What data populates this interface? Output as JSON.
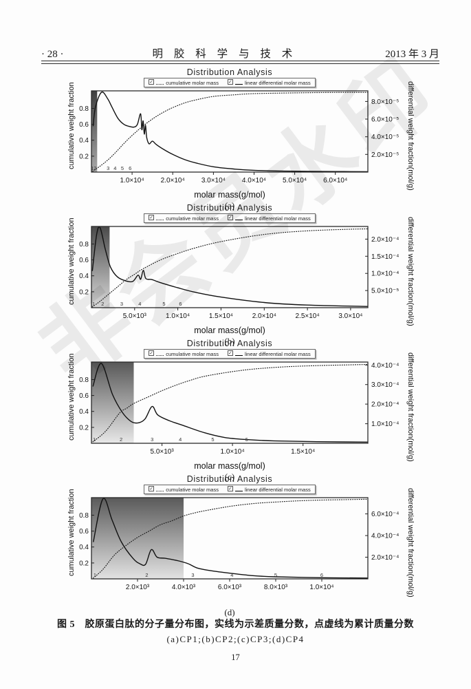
{
  "page": {
    "header": {
      "page_marker": "· 28 ·",
      "journal_title": "明 胶 科 学 与 技 术",
      "issue_date": "2013 年 3 月"
    },
    "watermark": "非会员水印",
    "caption_line1": "图 5　胶原蛋白肽的分子量分布图，实线为示差质量分数，点虚线为累计质量分数",
    "caption_line2": "(a)CP1;(b)CP2;(c)CP3;(d)CP4",
    "page_number": "17"
  },
  "chart_common": {
    "title": "Distribution Analysis",
    "legend": [
      {
        "icon": "checkbox-checked-icon",
        "line": "dotted",
        "label": "cumulative molar mass"
      },
      {
        "icon": "checkbox-checked-icon",
        "line": "solid",
        "label": "linear differential molar mass"
      }
    ],
    "ylabel_left": "cumulative weight fraction",
    "ylabel_right": "differential weight fraction(mol/g)",
    "left_axis": {
      "max": 1.02,
      "ticks": [
        {
          "value": 0.2,
          "label": "0.2"
        },
        {
          "value": 0.4,
          "label": "0.4"
        },
        {
          "value": 0.6,
          "label": "0.6"
        },
        {
          "value": 0.8,
          "label": "0.8"
        }
      ]
    },
    "colors": {
      "line": "#1a1a1a",
      "frame": "#2a2a2a",
      "text": "#111111"
    }
  },
  "chart_data": [
    {
      "panel": "(a)",
      "type": "line",
      "xlabel": "molar mass(g/mol)",
      "x_max": 68000,
      "x_ticks": [
        {
          "value": 10000,
          "label": "1.0×10⁴"
        },
        {
          "value": 20000,
          "label": "2.0×10⁴"
        },
        {
          "value": 30000,
          "label": "3.0×10⁴"
        },
        {
          "value": 40000,
          "label": "4.0×10⁴"
        },
        {
          "value": 50000,
          "label": "5.0×10⁴"
        },
        {
          "value": 60000,
          "label": "6.0×10⁴"
        }
      ],
      "right_axis": {
        "max": 9.2e-05,
        "ticks": [
          {
            "value": 2e-05,
            "label": "2.0×10⁻⁵"
          },
          {
            "value": 4e-05,
            "label": "4.0×10⁻⁵"
          },
          {
            "value": 6e-05,
            "label": "6.0×10⁻⁵"
          },
          {
            "value": 8e-05,
            "label": "8.0×10⁻⁵"
          }
        ]
      },
      "shade": {
        "x_end": 1400,
        "top_color": "#3f3f3f",
        "bottom_color": "#a8a8a8"
      },
      "slice_markers": [
        {
          "n": 1,
          "x": 200
        },
        {
          "n": 2,
          "x": 900
        },
        {
          "n": 3,
          "x": 4100
        },
        {
          "n": 4,
          "x": 5800
        },
        {
          "n": 5,
          "x": 7600
        },
        {
          "n": 6,
          "x": 9500
        }
      ],
      "series": [
        {
          "name": "cumulative molar mass",
          "style": "dotted",
          "axis": "left",
          "points": [
            [
              300,
              0.01
            ],
            [
              2000,
              0.07
            ],
            [
              4000,
              0.15
            ],
            [
              6000,
              0.25
            ],
            [
              8000,
              0.36
            ],
            [
              10000,
              0.46
            ],
            [
              12000,
              0.55
            ],
            [
              14000,
              0.63
            ],
            [
              16000,
              0.7
            ],
            [
              18000,
              0.76
            ],
            [
              20000,
              0.81
            ],
            [
              23000,
              0.87
            ],
            [
              26000,
              0.91
            ],
            [
              30000,
              0.95
            ],
            [
              35000,
              0.97
            ],
            [
              40000,
              0.985
            ],
            [
              50000,
              0.995
            ],
            [
              60000,
              1.0
            ],
            [
              68000,
              1.0
            ]
          ]
        },
        {
          "name": "linear differential molar mass",
          "style": "solid",
          "axis": "right",
          "points": [
            [
              400,
              5.2e-05
            ],
            [
              1000,
              7.4e-05
            ],
            [
              2500,
              9.05e-05
            ],
            [
              4000,
              8.3e-05
            ],
            [
              5000,
              7.4e-05
            ],
            [
              6500,
              6.1e-05
            ],
            [
              8000,
              5.4e-05
            ],
            [
              9500,
              5.15e-05
            ],
            [
              10500,
              5.1e-05
            ],
            [
              11300,
              5.4e-05
            ],
            [
              12100,
              6.6e-05
            ],
            [
              12400,
              4.8e-05
            ],
            [
              12700,
              5.8e-05
            ],
            [
              13000,
              4.3e-05
            ],
            [
              13300,
              5.3e-05
            ],
            [
              13600,
              3.9e-05
            ],
            [
              14200,
              3.2e-05
            ],
            [
              15000,
              3.5e-05
            ],
            [
              16000,
              3.1e-05
            ],
            [
              18000,
              2.5e-05
            ],
            [
              20000,
              2e-05
            ],
            [
              23000,
              1.4e-05
            ],
            [
              26000,
              1e-05
            ],
            [
              30000,
              6e-06
            ],
            [
              35000,
              3.5e-06
            ],
            [
              40000,
              2e-06
            ],
            [
              50000,
              1e-06
            ],
            [
              60000,
              6e-07
            ],
            [
              68000,
              5e-07
            ]
          ]
        }
      ]
    },
    {
      "panel": "(b)",
      "type": "line",
      "xlabel": "molar mass(g/mol)",
      "x_max": 32000,
      "x_ticks": [
        {
          "value": 5000,
          "label": "5.0×10³"
        },
        {
          "value": 10000,
          "label": "1.0×10⁴"
        },
        {
          "value": 15000,
          "label": "1.5×10⁴"
        },
        {
          "value": 20000,
          "label": "2.0×10⁴"
        },
        {
          "value": 25000,
          "label": "2.5×10⁴"
        },
        {
          "value": 30000,
          "label": "3.0×10⁴"
        }
      ],
      "right_axis": {
        "max": 0.000237,
        "ticks": [
          {
            "value": 5e-05,
            "label": "5.0×10⁻⁵"
          },
          {
            "value": 0.0001,
            "label": "1.0×10⁻⁴"
          },
          {
            "value": 0.00015,
            "label": "1.5×10⁻⁴"
          },
          {
            "value": 0.0002,
            "label": "2.0×10⁻⁴"
          }
        ]
      },
      "shade": {
        "x_end": 2100,
        "top_color": "#4a4a4a",
        "bottom_color": "#d8d8d8"
      },
      "slice_markers": [
        {
          "n": 1,
          "x": 250
        },
        {
          "n": 2,
          "x": 1300
        },
        {
          "n": 3,
          "x": 3500
        },
        {
          "n": 4,
          "x": 5600
        },
        {
          "n": 5,
          "x": 8400
        },
        {
          "n": 6,
          "x": 10300
        }
      ],
      "series": [
        {
          "name": "cumulative molar mass",
          "style": "dotted",
          "axis": "left",
          "points": [
            [
              100,
              0.01
            ],
            [
              1000,
              0.08
            ],
            [
              2000,
              0.17
            ],
            [
              3000,
              0.26
            ],
            [
              4000,
              0.35
            ],
            [
              5000,
              0.42
            ],
            [
              6000,
              0.49
            ],
            [
              8000,
              0.6
            ],
            [
              10000,
              0.68
            ],
            [
              12000,
              0.75
            ],
            [
              15000,
              0.83
            ],
            [
              20000,
              0.92
            ],
            [
              25000,
              0.965
            ],
            [
              30000,
              0.985
            ],
            [
              32000,
              0.99
            ]
          ]
        },
        {
          "name": "linear differential molar mass",
          "style": "solid",
          "axis": "right",
          "points": [
            [
              100,
              0.000107
            ],
            [
              600,
              0.000213
            ],
            [
              1000,
              0.000233
            ],
            [
              1600,
              0.000171
            ],
            [
              2200,
              0.000119
            ],
            [
              3000,
              9e-05
            ],
            [
              4000,
              7.8e-05
            ],
            [
              4800,
              7.7e-05
            ],
            [
              5400,
              9.5e-05
            ],
            [
              5700,
              8.3e-05
            ],
            [
              6000,
              0.000109
            ],
            [
              6300,
              8.5e-05
            ],
            [
              7000,
              8.2e-05
            ],
            [
              8000,
              7.3e-05
            ],
            [
              10000,
              5.8e-05
            ],
            [
              12000,
              4.5e-05
            ],
            [
              15000,
              3.1e-05
            ],
            [
              20000,
              1.5e-05
            ],
            [
              25000,
              7.6e-06
            ],
            [
              32000,
              3.6e-06
            ]
          ]
        }
      ]
    },
    {
      "panel": "(c)",
      "type": "line",
      "xlabel": "molar mass(g/mol)",
      "x_max": 19600,
      "x_ticks": [
        {
          "value": 5000,
          "label": "5.0×10³"
        },
        {
          "value": 10000,
          "label": "1.0×10⁴"
        },
        {
          "value": 15000,
          "label": "1.5×10⁴"
        }
      ],
      "right_axis": {
        "max": 0.000415,
        "ticks": [
          {
            "value": 0.0001,
            "label": "1.0×10⁻⁴"
          },
          {
            "value": 0.0002,
            "label": "2.0×10⁻⁴"
          },
          {
            "value": 0.0003,
            "label": "3.0×10⁻⁴"
          },
          {
            "value": 0.0004,
            "label": "4.0×10⁻⁴"
          }
        ]
      },
      "shade": {
        "x_end": 3000,
        "top_color": "#585858",
        "bottom_color": "#e8e8e8"
      },
      "slice_markers": [
        {
          "n": 1,
          "x": 200
        },
        {
          "n": 2,
          "x": 2100
        },
        {
          "n": 3,
          "x": 4300
        },
        {
          "n": 4,
          "x": 6300
        },
        {
          "n": 5,
          "x": 8600
        },
        {
          "n": 6,
          "x": 11000
        }
      ],
      "series": [
        {
          "name": "cumulative molar mass",
          "style": "dotted",
          "axis": "left",
          "points": [
            [
              100,
              0.02
            ],
            [
              1000,
              0.15
            ],
            [
              2000,
              0.38
            ],
            [
              2500,
              0.44
            ],
            [
              3000,
              0.5
            ],
            [
              4000,
              0.58
            ],
            [
              5000,
              0.66
            ],
            [
              6000,
              0.73
            ],
            [
              7000,
              0.79
            ],
            [
              8000,
              0.84
            ],
            [
              10000,
              0.9
            ],
            [
              12000,
              0.94
            ],
            [
              15000,
              0.97
            ],
            [
              19600,
              0.99
            ]
          ]
        },
        {
          "name": "linear differential molar mass",
          "style": "solid",
          "axis": "right",
          "points": [
            [
              100,
              0.00029
            ],
            [
              700,
              0.000408
            ],
            [
              1500,
              0.000248
            ],
            [
              2200,
              0.000157
            ],
            [
              2800,
              0.000112
            ],
            [
              3300,
              0.000104
            ],
            [
              3800,
              0.000124
            ],
            [
              4300,
              0.000188
            ],
            [
              4700,
              0.000145
            ],
            [
              5500,
              0.000116
            ],
            [
              6500,
              9.1e-05
            ],
            [
              8000,
              5.4e-05
            ],
            [
              9500,
              2.9e-05
            ],
            [
              11000,
              1.9e-05
            ],
            [
              13000,
              1.2e-05
            ],
            [
              16000,
              8e-06
            ],
            [
              19600,
              6e-06
            ]
          ]
        }
      ]
    },
    {
      "panel": "(d)",
      "type": "line",
      "xlabel": "",
      "x_max": 12000,
      "x_ticks": [
        {
          "value": 2000,
          "label": "2.0×10³"
        },
        {
          "value": 4000,
          "label": "4.0×10³"
        },
        {
          "value": 6000,
          "label": "6.0×10³"
        },
        {
          "value": 8000,
          "label": "8.0×10³"
        },
        {
          "value": 10000,
          "label": "1.0×10⁴"
        }
      ],
      "right_axis": {
        "max": 0.00075,
        "ticks": [
          {
            "value": 0.0002,
            "label": "2.0×10⁻⁴"
          },
          {
            "value": 0.0004,
            "label": "4.0×10⁻⁴"
          },
          {
            "value": 0.0006,
            "label": "6.0×10⁻⁴"
          }
        ]
      },
      "shade": {
        "x_end": 4000,
        "top_color": "#5a5a5a",
        "bottom_color": "#e2e2e2"
      },
      "slice_markers": [
        {
          "n": 1,
          "x": 150
        },
        {
          "n": 2,
          "x": 2400
        },
        {
          "n": 3,
          "x": 4400
        },
        {
          "n": 4,
          "x": 6100
        },
        {
          "n": 5,
          "x": 8000
        },
        {
          "n": 6,
          "x": 10000
        }
      ],
      "series": [
        {
          "name": "cumulative molar mass",
          "style": "dotted",
          "axis": "left",
          "points": [
            [
              80,
              0.01
            ],
            [
              500,
              0.12
            ],
            [
              1000,
              0.3
            ],
            [
              1500,
              0.42
            ],
            [
              2000,
              0.52
            ],
            [
              2500,
              0.6
            ],
            [
              3000,
              0.68
            ],
            [
              3500,
              0.73
            ],
            [
              4000,
              0.79
            ],
            [
              4500,
              0.83
            ],
            [
              5000,
              0.86
            ],
            [
              6000,
              0.91
            ],
            [
              7000,
              0.945
            ],
            [
              8000,
              0.965
            ],
            [
              9000,
              0.98
            ],
            [
              10000,
              0.99
            ],
            [
              11000,
              0.995
            ],
            [
              12000,
              1.0
            ]
          ]
        },
        {
          "name": "linear differential molar mass",
          "style": "solid",
          "axis": "right",
          "points": [
            [
              80,
              0.00034
            ],
            [
              500,
              0.00074
            ],
            [
              900,
              0.00054
            ],
            [
              1300,
              0.00034
            ],
            [
              1800,
              0.00019
            ],
            [
              2100,
              0.00014
            ],
            [
              2350,
              0.000135
            ],
            [
              2600,
              0.00027
            ],
            [
              2850,
              0.0002
            ],
            [
              3200,
              0.00019
            ],
            [
              3800,
              0.000165
            ],
            [
              4200,
              0.00014
            ],
            [
              4600,
              0.0001
            ],
            [
              5200,
              7.5e-05
            ],
            [
              6000,
              5.3e-05
            ],
            [
              7000,
              3e-05
            ],
            [
              8000,
              1.9e-05
            ],
            [
              10000,
              1.1e-05
            ],
            [
              12000,
              7.5e-06
            ]
          ]
        }
      ]
    }
  ]
}
